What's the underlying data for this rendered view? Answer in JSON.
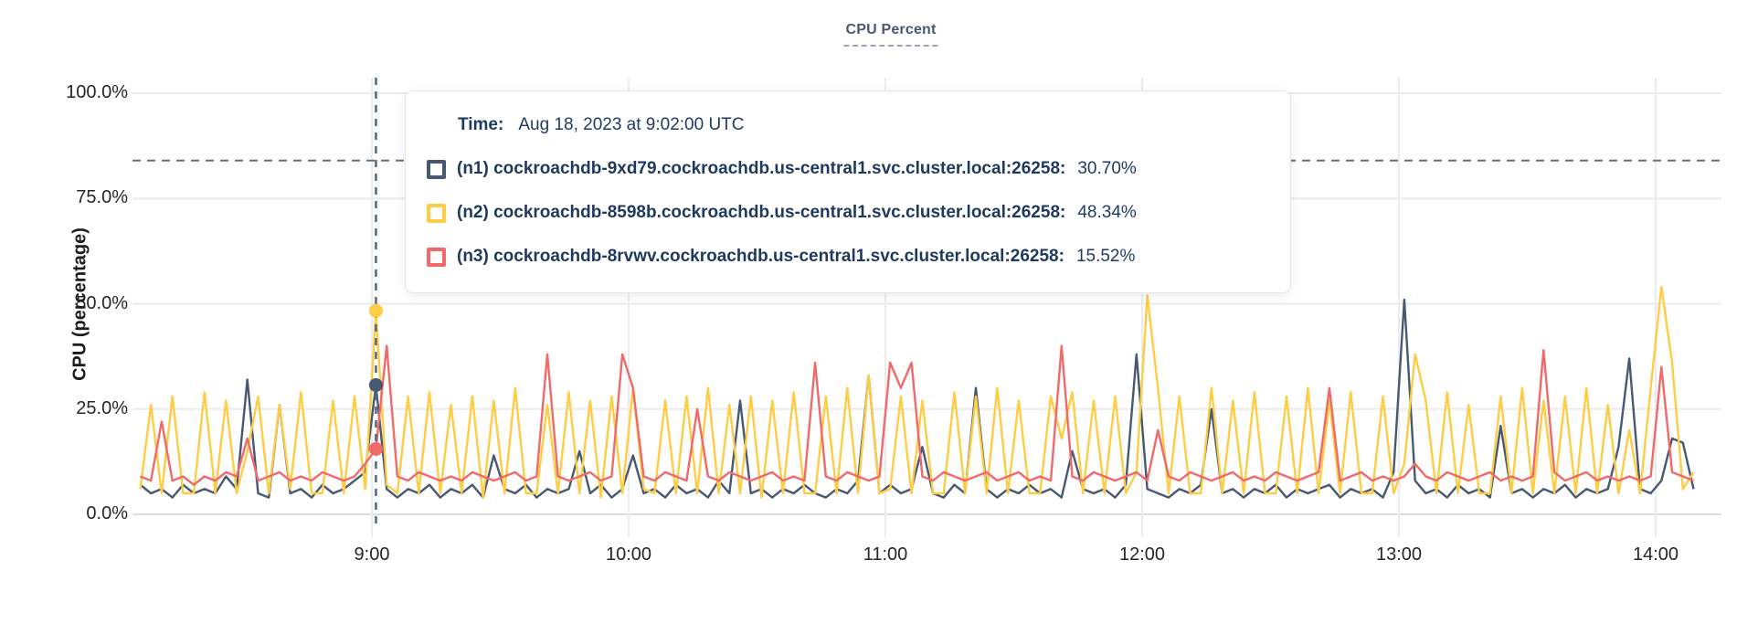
{
  "title": "CPU Percent",
  "axes": {
    "y_label": "CPU (percentage)",
    "y_ticks": [
      "100.0%",
      "75.0%",
      "50.0%",
      "25.0%",
      "0.0%"
    ],
    "x_ticks": [
      "9:00",
      "10:00",
      "11:00",
      "12:00",
      "13:00",
      "14:00"
    ]
  },
  "tooltip": {
    "time_label": "Time:",
    "time_value": "Aug 18, 2023 at 9:02:00 UTC",
    "rows": [
      {
        "name": "(n1) cockroachdb-9xd79.cockroachdb.us-central1.svc.cluster.local:26258:",
        "value": "30.70%",
        "color": "#475872"
      },
      {
        "name": "(n2) cockroachdb-8598b.cockroachdb.us-central1.svc.cluster.local:26258:",
        "value": "48.34%",
        "color": "#FFCD44"
      },
      {
        "name": "(n3) cockroachdb-8rvwv.cockroachdb.us-central1.svc.cluster.local:26258:",
        "value": "15.52%",
        "color": "#F16969"
      }
    ]
  },
  "chart_data": {
    "type": "line",
    "title": "CPU Percent",
    "ylabel": "CPU (percentage)",
    "ylim": [
      0,
      100
    ],
    "y_gridlines": [
      0,
      25,
      50,
      75,
      100
    ],
    "x_tick_labels": [
      "9:00",
      "10:00",
      "11:00",
      "12:00",
      "13:00",
      "14:00"
    ],
    "x_start_time": "8:06",
    "x_end_time": "14:09",
    "step_minutes": 2.5,
    "threshold_value": 84,
    "hover_index": 22,
    "hover_time": "Aug 18, 2023 at 9:02:00 UTC",
    "grid": true,
    "legend_position": "tooltip-overlay",
    "series": [
      {
        "name": "(n1) cockroachdb-9xd79.cockroachdb.us-central1.svc.cluster.local:26258",
        "color": "#475872",
        "hover_value": 30.7,
        "values": [
          7,
          5,
          6,
          4,
          7,
          5,
          6,
          5,
          9,
          6,
          32,
          5,
          4,
          26,
          5,
          6,
          4,
          7,
          5,
          6,
          8,
          10,
          30.7,
          6,
          4,
          6,
          5,
          7,
          4,
          6,
          5,
          7,
          4,
          14,
          6,
          5,
          7,
          4,
          6,
          5,
          6,
          15,
          5,
          7,
          4,
          6,
          14,
          5,
          6,
          4,
          7,
          5,
          6,
          4,
          8,
          5,
          27,
          5,
          6,
          4,
          6,
          5,
          7,
          5,
          4,
          6,
          5,
          8,
          33,
          5,
          7,
          5,
          6,
          16,
          5,
          4,
          7,
          5,
          30,
          6,
          4,
          6,
          5,
          7,
          5,
          6,
          4,
          15,
          6,
          5,
          6,
          4,
          7,
          38,
          6,
          5,
          4,
          6,
          5,
          7,
          25,
          5,
          6,
          4,
          6,
          5,
          7,
          4,
          6,
          5,
          6,
          7,
          4,
          6,
          5,
          6,
          4,
          10,
          51,
          8,
          5,
          6,
          4,
          7,
          5,
          6,
          4,
          21,
          5,
          6,
          4,
          6,
          5,
          7,
          4,
          6,
          5,
          6,
          16,
          37,
          6,
          5,
          8,
          18,
          17,
          6
        ]
      },
      {
        "name": "(n2) cockroachdb-8598b.cockroachdb.us-central1.svc.cluster.local:26258",
        "color": "#FFCD44",
        "hover_value": 48.34,
        "values": [
          6,
          26,
          5,
          28,
          5,
          5,
          29,
          5,
          27,
          5,
          15,
          28,
          5,
          26,
          6,
          29,
          5,
          5,
          27,
          5,
          28,
          6,
          48.34,
          7,
          5,
          28,
          5,
          29,
          5,
          26,
          5,
          28,
          4,
          27,
          5,
          30,
          5,
          5,
          26,
          5,
          29,
          5,
          27,
          4,
          28,
          5,
          30,
          6,
          5,
          27,
          5,
          28,
          5,
          30,
          5,
          26,
          5,
          28,
          4,
          27,
          5,
          29,
          5,
          5,
          28,
          5,
          30,
          5,
          33,
          5,
          6,
          28,
          5,
          27,
          5,
          5,
          29,
          5,
          28,
          5,
          30,
          5,
          27,
          5,
          5,
          28,
          18,
          29,
          5,
          27,
          5,
          28,
          5,
          10,
          52,
          30,
          5,
          28,
          5,
          5,
          30,
          5,
          27,
          5,
          29,
          5,
          5,
          28,
          5,
          30,
          5,
          27,
          5,
          29,
          5,
          5,
          28,
          5,
          12,
          38,
          27,
          5,
          29,
          5,
          26,
          5,
          5,
          28,
          5,
          30,
          5,
          27,
          5,
          28,
          5,
          30,
          5,
          26,
          5,
          20,
          5,
          30,
          54,
          36,
          6,
          10
        ]
      },
      {
        "name": "(n3) cockroachdb-8rvwv.cockroachdb.us-central1.svc.cluster.local:26258",
        "color": "#F16969",
        "hover_value": 15.52,
        "values": [
          9,
          8,
          22,
          8,
          9,
          7,
          9,
          8,
          10,
          9,
          18,
          8,
          9,
          10,
          8,
          9,
          8,
          10,
          9,
          8,
          9,
          12,
          15.52,
          40,
          9,
          8,
          10,
          9,
          8,
          9,
          8,
          10,
          9,
          8,
          9,
          10,
          8,
          9,
          38,
          9,
          8,
          9,
          10,
          8,
          9,
          38,
          30,
          9,
          8,
          10,
          9,
          8,
          25,
          9,
          8,
          10,
          9,
          8,
          9,
          10,
          8,
          9,
          8,
          36,
          9,
          8,
          10,
          9,
          8,
          9,
          36,
          30,
          36,
          9,
          8,
          10,
          9,
          8,
          9,
          10,
          8,
          9,
          10,
          8,
          9,
          8,
          40,
          9,
          8,
          10,
          9,
          8,
          9,
          10,
          8,
          20,
          9,
          8,
          10,
          9,
          8,
          9,
          10,
          8,
          9,
          8,
          10,
          9,
          8,
          9,
          10,
          30,
          8,
          9,
          10,
          8,
          9,
          8,
          9,
          12,
          9,
          8,
          10,
          9,
          8,
          9,
          10,
          8,
          9,
          8,
          9,
          39,
          10,
          8,
          9,
          10,
          8,
          9,
          8,
          9,
          8,
          9,
          35,
          10,
          9,
          8
        ]
      }
    ]
  }
}
